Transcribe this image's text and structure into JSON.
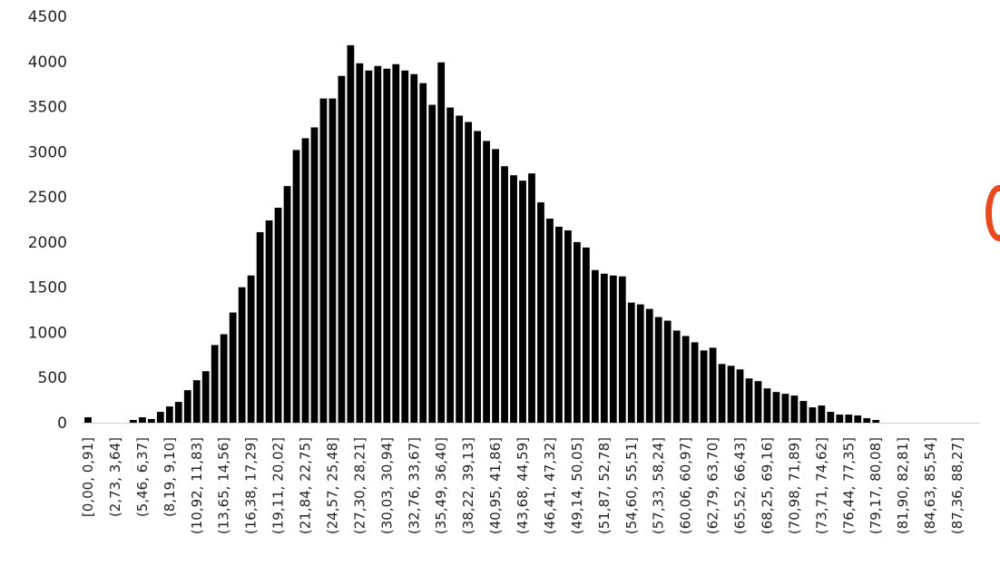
{
  "chart_data": {
    "type": "bar",
    "title": "",
    "xlabel": "",
    "ylabel": "",
    "ylim": [
      0,
      4500
    ],
    "yticks": [
      "0",
      "500",
      "1000",
      "1500",
      "2000",
      "2500",
      "3000",
      "3500",
      "4000",
      "4500"
    ],
    "grid": false,
    "legend": "none",
    "bar_color": "#000000",
    "accent_color": "#e8491d",
    "x_tick_labels": [
      "[0,00, 0,91]",
      "(2,73, 3,64]",
      "(5,46, 6,37]",
      "(8,19, 9,10]",
      "(10,92, 11,83]",
      "(13,65, 14,56]",
      "(16,38, 17,29]",
      "(19,11, 20,02]",
      "(21,84, 22,75]",
      "(24,57, 25,48]",
      "(27,30, 28,21]",
      "(30,03, 30,94]",
      "(32,76, 33,67]",
      "(35,49, 36,40]",
      "(38,22, 39,13]",
      "(40,95, 41,86]",
      "(43,68, 44,59]",
      "(46,41, 47,32]",
      "(49,14, 50,05]",
      "(51,87, 52,78]",
      "(54,60, 55,51]",
      "(57,33, 58,24]",
      "(60,06, 60,97]",
      "(62,79, 63,70]",
      "(65,52, 66,43]",
      "(68,25, 69,16]",
      "(70,98, 71,89]",
      "(73,71, 74,62]",
      "(76,44, 77,35]",
      "(79,17, 80,08]",
      "(81,90, 82,81]",
      "(84,63, 85,54]",
      "(87,36, 88,27]"
    ],
    "values": [
      60,
      0,
      0,
      0,
      0,
      30,
      60,
      40,
      120,
      180,
      230,
      360,
      470,
      570,
      860,
      980,
      1220,
      1500,
      1630,
      2110,
      2240,
      2380,
      2620,
      3020,
      3150,
      3270,
      3590,
      3590,
      3840,
      4180,
      3980,
      3900,
      3950,
      3920,
      3970,
      3900,
      3860,
      3760,
      3520,
      3990,
      3490,
      3400,
      3330,
      3230,
      3120,
      3030,
      2840,
      2740,
      2680,
      2760,
      2440,
      2260,
      2170,
      2130,
      2000,
      1940,
      1690,
      1650,
      1630,
      1620,
      1330,
      1310,
      1260,
      1170,
      1130,
      1020,
      960,
      890,
      800,
      830,
      650,
      630,
      590,
      490,
      460,
      380,
      340,
      320,
      300,
      240,
      170,
      190,
      120,
      90,
      90,
      80,
      50,
      30,
      0,
      0,
      0,
      0,
      0,
      0,
      0,
      0,
      0,
      0,
      0
    ]
  }
}
